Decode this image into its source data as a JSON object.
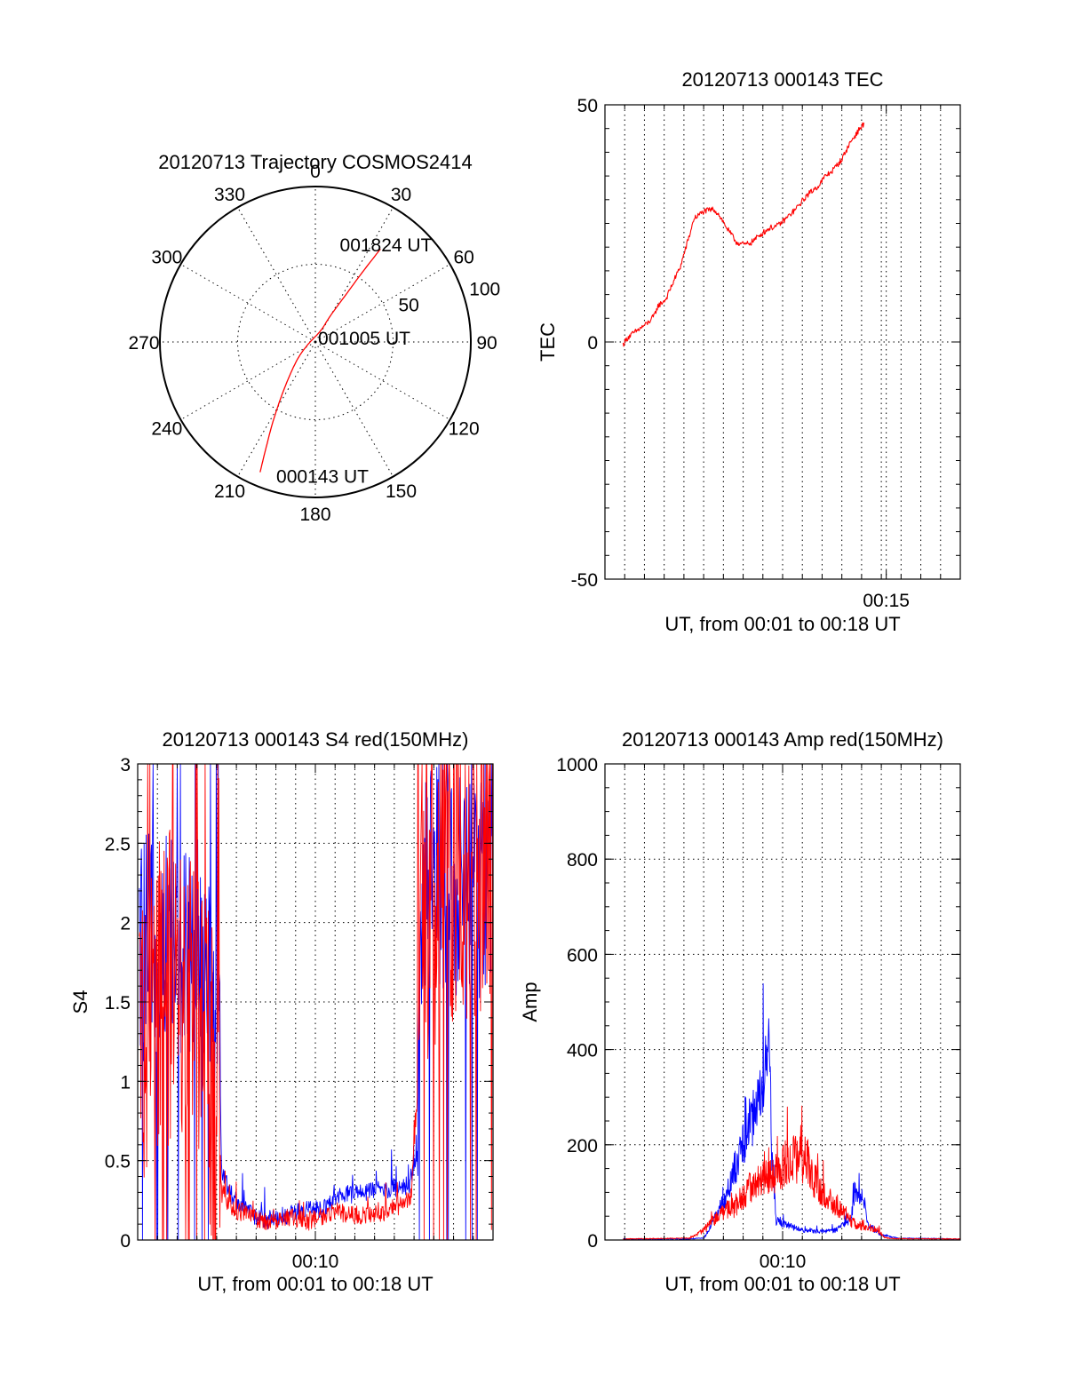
{
  "chart_data": [
    {
      "id": "polar",
      "type": "line",
      "projection": "polar",
      "title": "20120713 Trajectory COSMOS2414",
      "azimuth_labels": [
        "0",
        "30",
        "60",
        "90",
        "120",
        "150",
        "180",
        "210",
        "240",
        "270",
        "300",
        "330"
      ],
      "radial_labels": [
        "50",
        "100"
      ],
      "radial_range": [
        0,
        100
      ],
      "azimuth_origin": "top",
      "azimuth_direction": "clockwise",
      "grid": true,
      "trajectory": {
        "color": "#ff0000",
        "points": [
          [
            203,
            91
          ],
          [
            205,
            75
          ],
          [
            208,
            58
          ],
          [
            213,
            38
          ],
          [
            224,
            18
          ],
          [
            246,
            6
          ],
          [
            25,
            8
          ],
          [
            30,
            20
          ],
          [
            33,
            38
          ],
          [
            34,
            54
          ],
          [
            35,
            73
          ]
        ]
      },
      "annotations": [
        {
          "text": "001824 UT",
          "azimuth": 33,
          "radius": 75
        },
        {
          "text": "001005 UT",
          "azimuth": 84,
          "radius": 27
        },
        {
          "text": "000143 UT",
          "azimuth": 180,
          "radius": 86
        }
      ]
    },
    {
      "id": "tec",
      "type": "line",
      "title": "20120713 000143 TEC",
      "xlabel": "UT, from 00:01 to 00:18 UT",
      "ylabel": "TEC",
      "xlim": [
        0,
        1080
      ],
      "ylim": [
        -50,
        50
      ],
      "yticks": [
        -50,
        0,
        50
      ],
      "xtick_labels": [
        {
          "label": "00:15",
          "x": 855
        }
      ],
      "grid": true,
      "series": [
        {
          "color": "#ff0000",
          "noise": 0.55,
          "points": [
            [
              55,
              -0.5
            ],
            [
              70,
              1
            ],
            [
              100,
              2.5
            ],
            [
              130,
              4
            ],
            [
              150,
              5.5
            ],
            [
              160,
              7.5
            ],
            [
              185,
              9
            ],
            [
              210,
              13
            ],
            [
              230,
              16
            ],
            [
              240,
              18.5
            ],
            [
              255,
              22
            ],
            [
              265,
              24.5
            ],
            [
              270,
              26
            ],
            [
              300,
              27.5
            ],
            [
              330,
              28
            ],
            [
              345,
              27
            ],
            [
              375,
              23.5
            ],
            [
              400,
              21
            ],
            [
              425,
              20.5
            ],
            [
              445,
              21
            ],
            [
              470,
              22.5
            ],
            [
              500,
              24
            ],
            [
              525,
              24.5
            ],
            [
              550,
              26
            ],
            [
              580,
              28
            ],
            [
              615,
              31
            ],
            [
              650,
              33
            ],
            [
              670,
              35
            ],
            [
              690,
              36
            ],
            [
              720,
              38.5
            ],
            [
              745,
              42
            ],
            [
              760,
              43.5
            ],
            [
              775,
              45
            ],
            [
              787,
              46
            ]
          ]
        }
      ]
    },
    {
      "id": "s4",
      "type": "line",
      "title": "20120713 000143 S4 red(150MHz)",
      "xlabel": "UT, from 00:01 to 00:18 UT",
      "ylabel": "S4",
      "xlim": [
        0,
        1080
      ],
      "ylim": [
        0,
        3
      ],
      "yticks": [
        0,
        0.5,
        1,
        1.5,
        2,
        2.5,
        3
      ],
      "ytick_labels": [
        "0",
        "0.5",
        "1",
        "1.5",
        "2",
        "2.5",
        "3"
      ],
      "xtick_labels": [
        {
          "label": "00:10",
          "x": 540
        }
      ],
      "grid": true,
      "series": [
        {
          "color": "#0000ff",
          "noise": 0.6,
          "points": [
            [
              5,
              1.8
            ],
            [
              60,
              1.9
            ],
            [
              140,
              1.9
            ],
            [
              200,
              1.9
            ],
            [
              245,
              1.6
            ],
            [
              255,
              0.45
            ],
            [
              280,
              0.3
            ],
            [
              320,
              0.2
            ],
            [
              380,
              0.12
            ],
            [
              440,
              0.15
            ],
            [
              500,
              0.18
            ],
            [
              560,
              0.2
            ],
            [
              620,
              0.28
            ],
            [
              680,
              0.3
            ],
            [
              750,
              0.32
            ],
            [
              830,
              0.35
            ],
            [
              850,
              0.55
            ],
            [
              865,
              2.2
            ],
            [
              930,
              2.3
            ],
            [
              1000,
              2.2
            ],
            [
              1080,
              2.2
            ]
          ]
        },
        {
          "color": "#ff0000",
          "noise": 0.85,
          "points": [
            [
              5,
              1.3
            ],
            [
              60,
              1.6
            ],
            [
              140,
              1.6
            ],
            [
              200,
              1.3
            ],
            [
              245,
              0.8
            ],
            [
              255,
              0.3
            ],
            [
              290,
              0.2
            ],
            [
              340,
              0.15
            ],
            [
              400,
              0.1
            ],
            [
              460,
              0.14
            ],
            [
              520,
              0.12
            ],
            [
              600,
              0.18
            ],
            [
              680,
              0.15
            ],
            [
              750,
              0.18
            ],
            [
              830,
              0.25
            ],
            [
              850,
              0.9
            ],
            [
              865,
              2.0
            ],
            [
              930,
              2.2
            ],
            [
              1000,
              2.3
            ],
            [
              1080,
              2.3
            ]
          ]
        }
      ]
    },
    {
      "id": "amp",
      "type": "line",
      "title": "20120713 000143 Amp red(150MHz)",
      "xlabel": "UT, from 00:01 to 00:18 UT",
      "ylabel": "Amp",
      "xlim": [
        0,
        1080
      ],
      "ylim": [
        0,
        1000
      ],
      "yticks": [
        0,
        200,
        400,
        600,
        800,
        1000
      ],
      "ytick_labels": [
        "0",
        "200",
        "400",
        "600",
        "800",
        "1000"
      ],
      "xtick_labels": [
        {
          "label": "00:10",
          "x": 540
        }
      ],
      "grid": true,
      "series": [
        {
          "color": "#0000ff",
          "noise": 0.35,
          "points": [
            [
              55,
              1
            ],
            [
              250,
              1
            ],
            [
              300,
              3
            ],
            [
              310,
              15
            ],
            [
              330,
              40
            ],
            [
              360,
              80
            ],
            [
              395,
              150
            ],
            [
              420,
              200
            ],
            [
              450,
              250
            ],
            [
              475,
              300
            ],
            [
              490,
              400
            ],
            [
              500,
              500
            ],
            [
              505,
              200
            ],
            [
              520,
              40
            ],
            [
              560,
              30
            ],
            [
              600,
              20
            ],
            [
              660,
              18
            ],
            [
              700,
              20
            ],
            [
              745,
              40
            ],
            [
              760,
              90
            ],
            [
              785,
              90
            ],
            [
              800,
              30
            ],
            [
              840,
              10
            ],
            [
              900,
              3
            ],
            [
              1080,
              1
            ]
          ]
        },
        {
          "color": "#ff0000",
          "noise": 0.45,
          "points": [
            [
              55,
              1
            ],
            [
              255,
              3
            ],
            [
              270,
              8
            ],
            [
              300,
              20
            ],
            [
              330,
              40
            ],
            [
              360,
              60
            ],
            [
              400,
              70
            ],
            [
              440,
              110
            ],
            [
              470,
              130
            ],
            [
              500,
              130
            ],
            [
              530,
              150
            ],
            [
              560,
              165
            ],
            [
              590,
              175
            ],
            [
              620,
              160
            ],
            [
              640,
              120
            ],
            [
              665,
              95
            ],
            [
              690,
              80
            ],
            [
              720,
              60
            ],
            [
              745,
              40
            ],
            [
              770,
              30
            ],
            [
              800,
              28
            ],
            [
              830,
              20
            ],
            [
              850,
              5
            ],
            [
              880,
              2
            ],
            [
              1080,
              1
            ]
          ]
        }
      ]
    }
  ]
}
